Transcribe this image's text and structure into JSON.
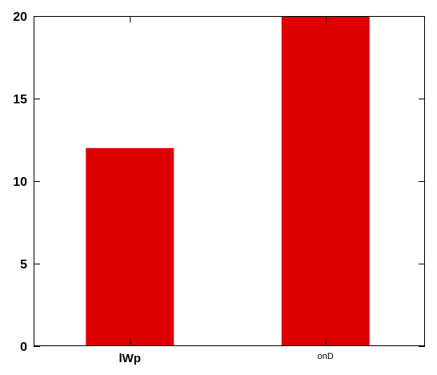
{
  "chart_data": {
    "type": "bar",
    "categories": [
      "lWp",
      "onD"
    ],
    "values": [
      12,
      20
    ],
    "title": "",
    "xlabel": "",
    "ylabel": "",
    "ylim": [
      0,
      20
    ],
    "yticks": [
      0,
      5,
      10,
      15,
      20
    ],
    "grid": false,
    "legend": "none",
    "bar_color": "#dd0000",
    "category_label_styles": [
      "bold",
      "small"
    ]
  }
}
